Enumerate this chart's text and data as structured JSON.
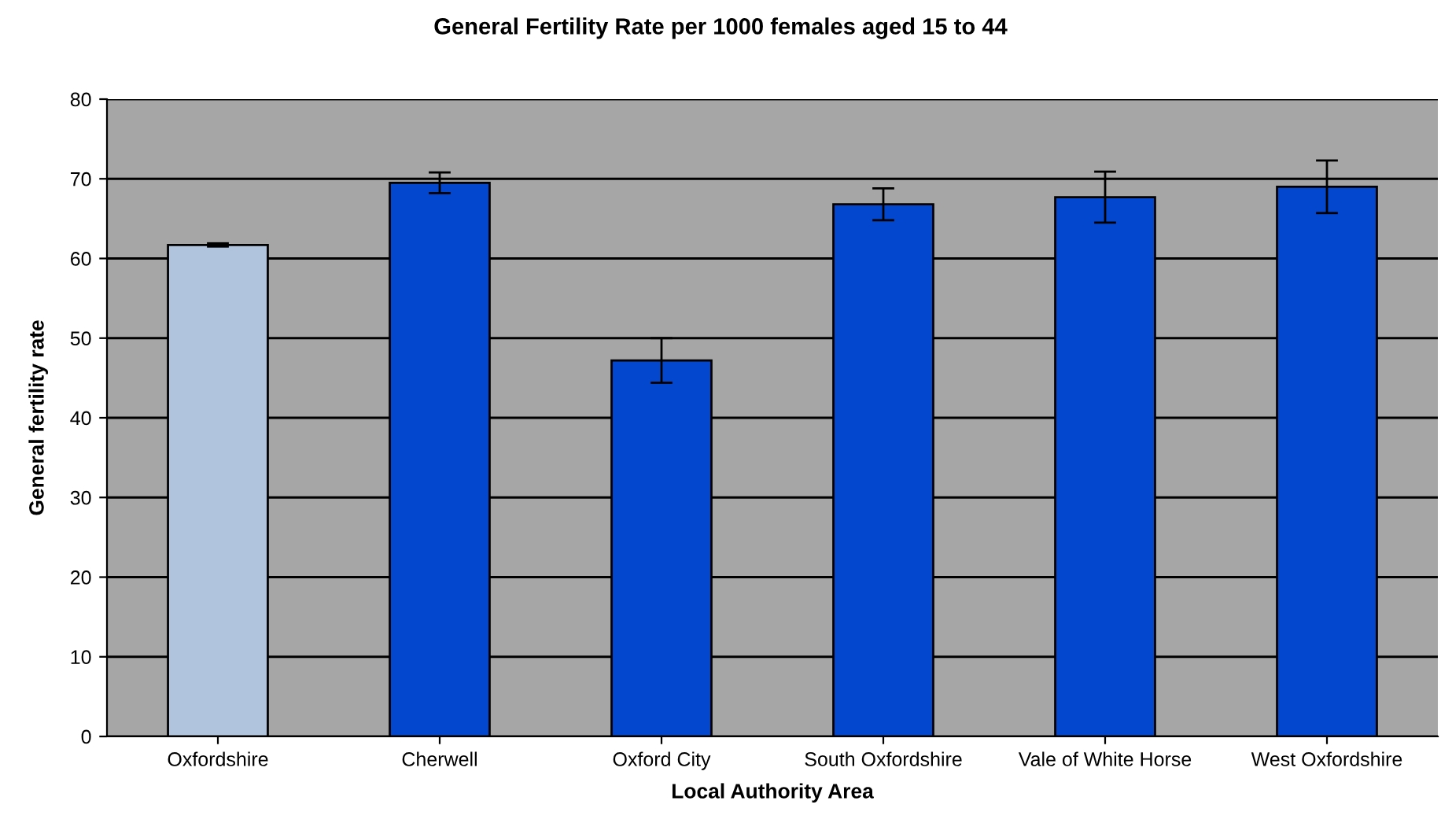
{
  "chart_data": {
    "type": "bar",
    "title": "General Fertility Rate per 1000 females aged 15 to 44",
    "xlabel": "Local Authority Area",
    "ylabel": "General fertility rate",
    "categories": [
      "Oxfordshire",
      "Cherwell",
      "Oxford City",
      "South Oxfordshire",
      "Vale of White Horse",
      "West Oxfordshire"
    ],
    "values": [
      61.7,
      69.5,
      47.2,
      66.8,
      67.7,
      69.0
    ],
    "errors": [
      0.2,
      1.3,
      2.8,
      2.0,
      3.2,
      3.3
    ],
    "colors": [
      "#b0c4de",
      "#0447cf",
      "#0447cf",
      "#0447cf",
      "#0447cf",
      "#0447cf"
    ],
    "ylim": [
      0,
      80
    ],
    "yticks": [
      0,
      10,
      20,
      30,
      40,
      50,
      60,
      70,
      80
    ],
    "grid": "y"
  }
}
